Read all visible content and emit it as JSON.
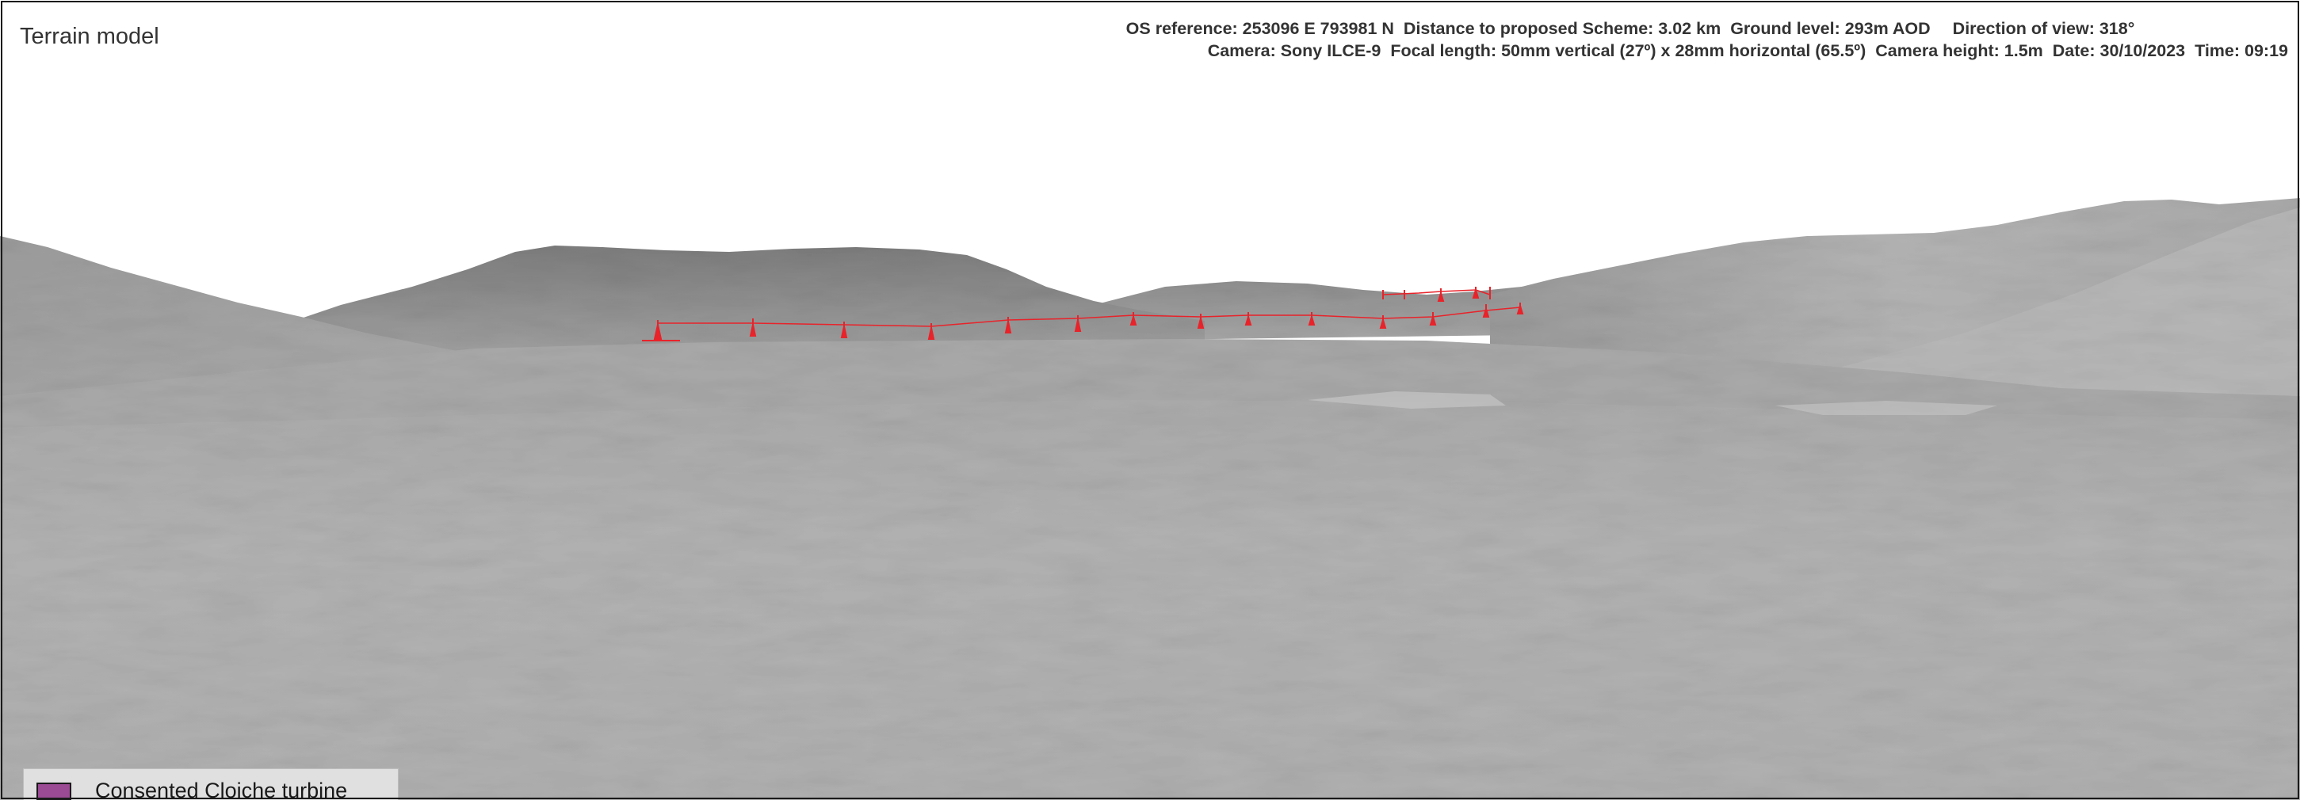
{
  "panel": {
    "title": "Terrain model"
  },
  "viewpoint": {
    "os_reference": "OS reference: 253096 E 793981 N",
    "distance": "Distance to proposed Scheme: 3.02 km",
    "ground_level": "Ground level: 293m AOD",
    "direction": "Direction of view: 318°",
    "camera": "Camera: Sony ILCE-9",
    "focal_length": "Focal length: 50mm vertical (27º) x 28mm horizontal (65.5º)",
    "camera_height": "Camera height: 1.5m",
    "date": "Date: 30/10/2023",
    "time": "Time: 09:19"
  },
  "legend": {
    "items": [
      {
        "label": "Consented Cloiche turbine",
        "color": "#9b4a94"
      }
    ]
  },
  "colors": {
    "wireline": "#e8232a",
    "sky": "#ffffff",
    "terrain_far": "#8e8e8e",
    "terrain_mid": "#a9a9a9",
    "terrain_near": "#b3b3b3"
  }
}
